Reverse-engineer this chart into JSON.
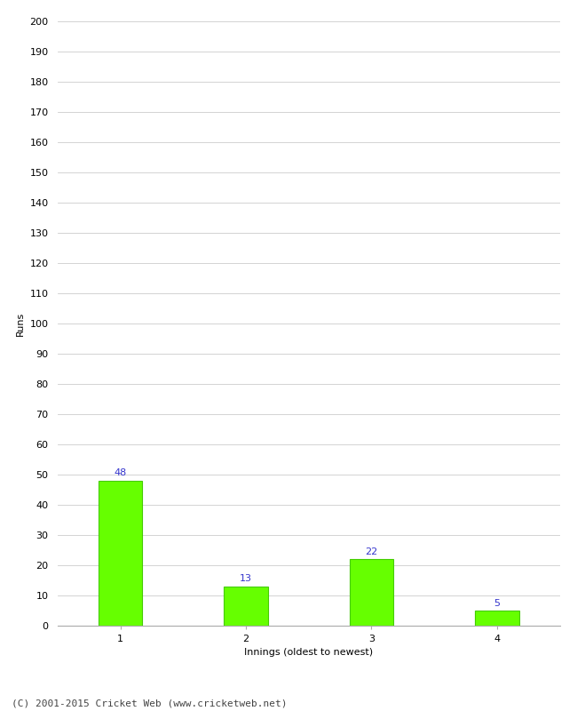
{
  "categories": [
    "1",
    "2",
    "3",
    "4"
  ],
  "values": [
    48,
    13,
    22,
    5
  ],
  "bar_color": "#66ff00",
  "bar_edge_color": "#44cc00",
  "label_color": "#3333cc",
  "xlabel": "Innings (oldest to newest)",
  "ylabel": "Runs",
  "ylim": [
    0,
    200
  ],
  "ytick_step": 10,
  "background_color": "#ffffff",
  "grid_color": "#cccccc",
  "footer": "(C) 2001-2015 Cricket Web (www.cricketweb.net)"
}
